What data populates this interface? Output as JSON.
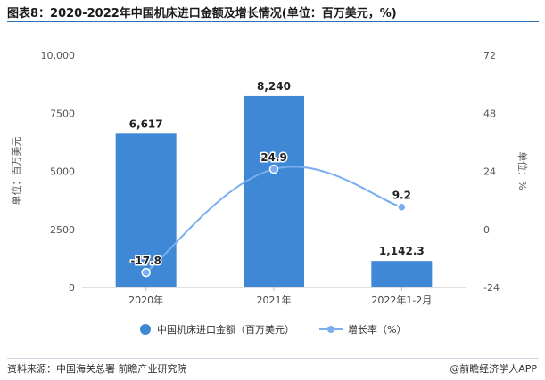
{
  "title": "图表8：2020-2022年中国机床进口金额及增长情况(单位：百万美元，%)",
  "source": "资料来源：中国海关总署 前瞻产业研究院",
  "brand": "@前瞻经济学人APP",
  "colors": {
    "bar": "#3f88d6",
    "line": "#7aaef0",
    "title_rule": "#2a6fb4"
  },
  "chart_data": {
    "type": "bar+line",
    "categories": [
      "2020年",
      "2021年",
      "2022年1-2月"
    ],
    "series": [
      {
        "name": "中国机床进口金额（百万美元）",
        "type": "bar",
        "axis": "left",
        "values": [
          6617,
          8240,
          1142.3
        ],
        "labels": [
          "6,617",
          "8,240",
          "1,142.3"
        ]
      },
      {
        "name": "增长率（%）",
        "type": "line",
        "axis": "right",
        "values": [
          -17.8,
          24.9,
          9.2
        ],
        "labels": [
          "-17.8",
          "24.9",
          "9.2"
        ]
      }
    ],
    "ylabel_left": "单位：百万美元",
    "ylabel_right": "单位：%",
    "ylim_left": [
      0,
      10000
    ],
    "yticks_left": [
      "0",
      "2500",
      "5000",
      "7500",
      "10,000"
    ],
    "ylim_right": [
      -24,
      72
    ],
    "yticks_right": [
      "-24",
      "0",
      "24",
      "48",
      "72"
    ],
    "legend_position": "bottom"
  }
}
